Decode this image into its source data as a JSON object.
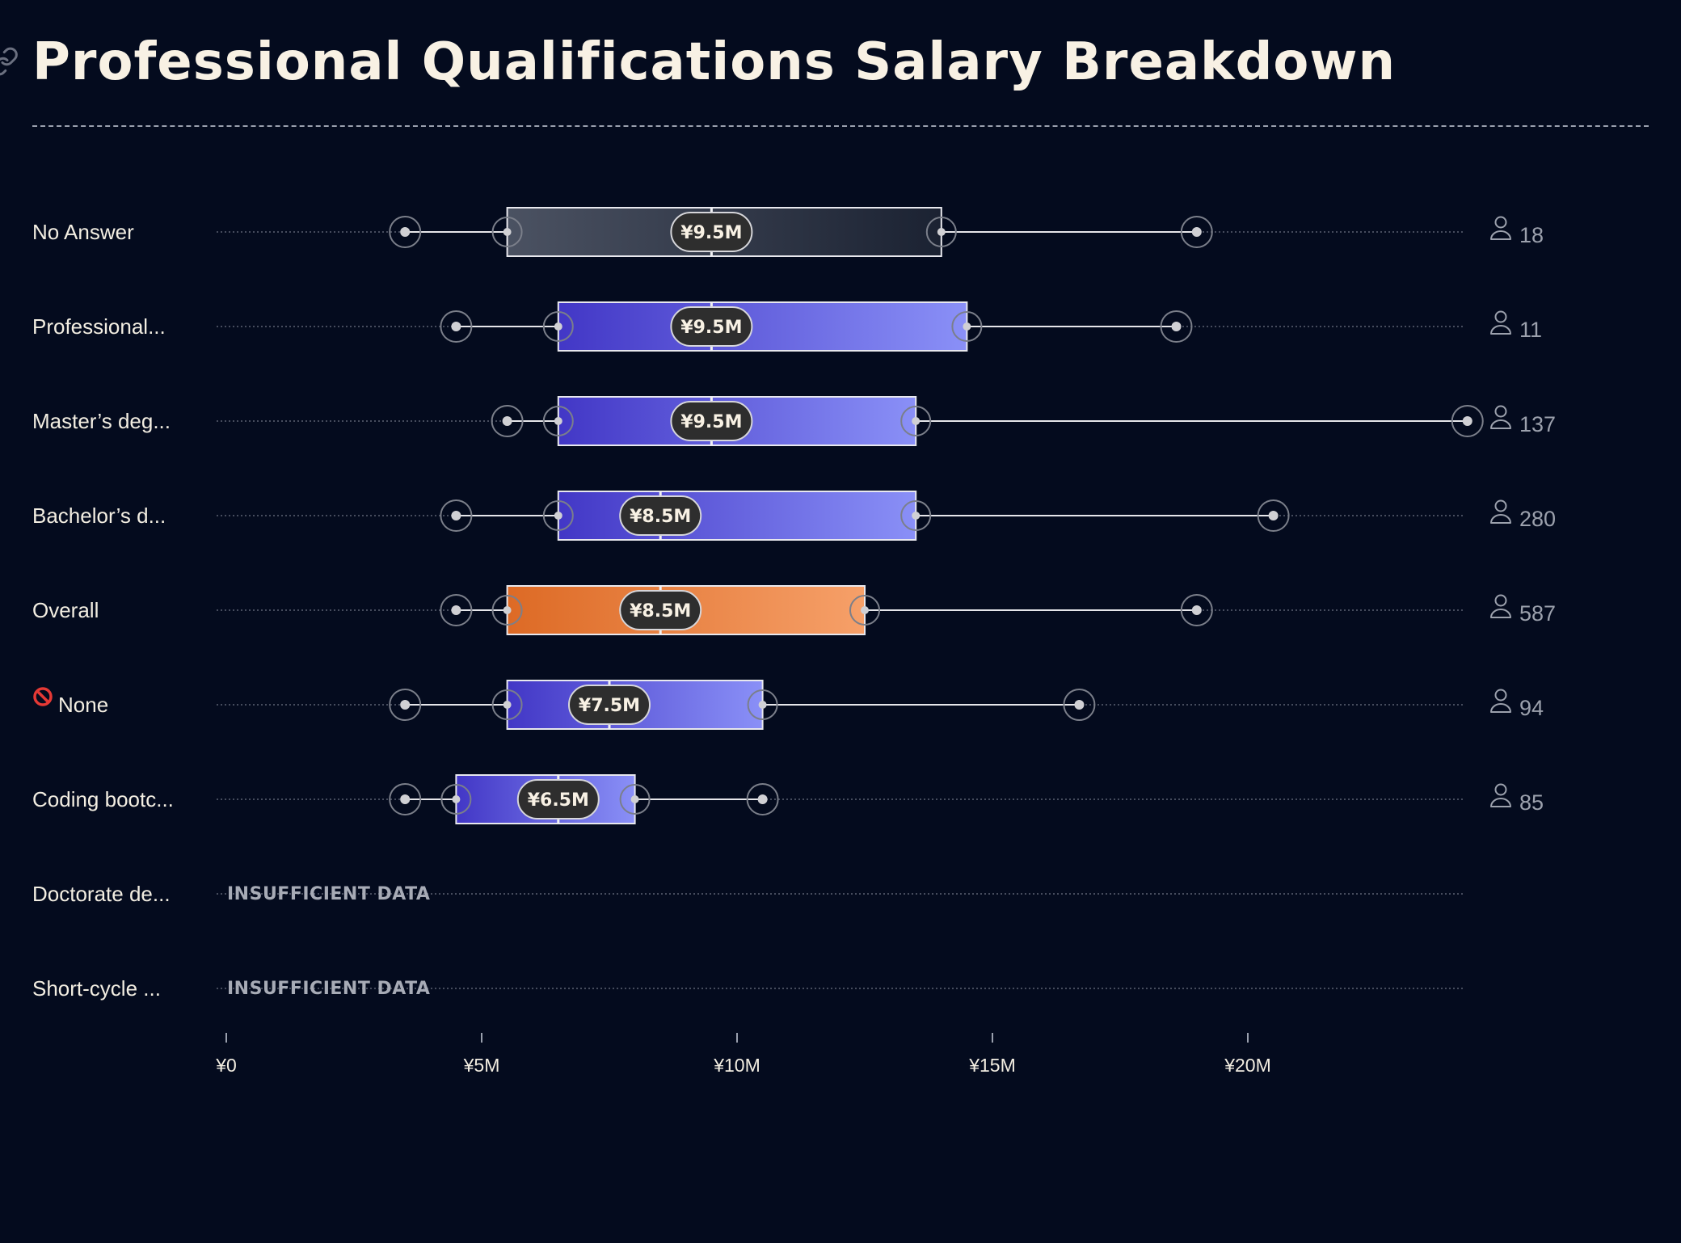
{
  "title": "Professional Qualifications Salary Breakdown",
  "insufficient_label": "INSUFFICIENT DATA",
  "icons": {
    "header": "link-icon",
    "count": "person-icon",
    "none_prefix": "no-entry-icon"
  },
  "colors": {
    "background": "#040b1e",
    "gray_box": [
      "#4b5262",
      "#1b2232"
    ],
    "blue_box": [
      "#4237c6",
      "#8a90f7"
    ],
    "orange_box": [
      "#dd6a25",
      "#f6a069"
    ],
    "median_pill": "#2e2e2e"
  },
  "chart_data": {
    "type": "boxplot",
    "title": "Professional Qualifications Salary Breakdown",
    "orientation": "horizontal",
    "xlim": [
      0,
      24.5
    ],
    "x_unit": "M JPY",
    "ticks": [
      {
        "value": 0,
        "label": "¥0"
      },
      {
        "value": 5,
        "label": "¥5M"
      },
      {
        "value": 10,
        "label": "¥10M"
      },
      {
        "value": 15,
        "label": "¥15M"
      },
      {
        "value": 20,
        "label": "¥20M"
      }
    ],
    "rows": [
      {
        "label": "No Answer",
        "min": 3.5,
        "q1": 5.5,
        "median": 9.5,
        "q3": 14.0,
        "max": 19.0,
        "median_label": "¥9.5M",
        "count": "18",
        "style": "gray"
      },
      {
        "label": "Professional...",
        "min": 4.5,
        "q1": 6.5,
        "median": 9.5,
        "q3": 14.5,
        "max": 18.6,
        "median_label": "¥9.5M",
        "count": "11",
        "style": "blue"
      },
      {
        "label": "Master’s deg...",
        "min": 5.5,
        "q1": 6.5,
        "median": 9.5,
        "q3": 13.5,
        "max": 24.3,
        "median_label": "¥9.5M",
        "count": "137",
        "style": "blue"
      },
      {
        "label": "Bachelor’s d...",
        "min": 4.5,
        "q1": 6.5,
        "median": 8.5,
        "q3": 13.5,
        "max": 20.5,
        "median_label": "¥8.5M",
        "count": "280",
        "style": "blue"
      },
      {
        "label": "Overall",
        "min": 4.5,
        "q1": 5.5,
        "median": 8.5,
        "q3": 12.5,
        "max": 19.0,
        "median_label": "¥8.5M",
        "count": "587",
        "style": "orange"
      },
      {
        "label": "None",
        "min": 3.5,
        "q1": 5.5,
        "median": 7.5,
        "q3": 10.5,
        "max": 16.7,
        "median_label": "¥7.5M",
        "count": "94",
        "style": "blue",
        "prefix_icon": "no-entry-icon"
      },
      {
        "label": "Coding bootc...",
        "min": 3.5,
        "q1": 4.5,
        "median": 6.5,
        "q3": 8.0,
        "max": 10.5,
        "median_label": "¥6.5M",
        "count": "85",
        "style": "blue"
      },
      {
        "label": "Doctorate de...",
        "insufficient": true
      },
      {
        "label": "Short-cycle ...",
        "insufficient": true
      }
    ]
  }
}
